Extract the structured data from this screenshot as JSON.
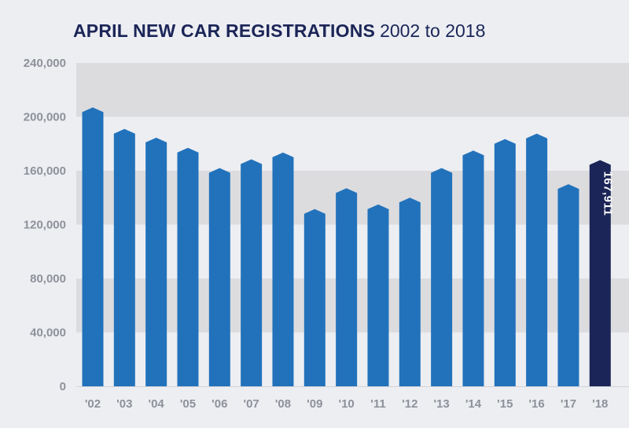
{
  "colors": {
    "bar": "#2272bb",
    "highlight": "#1b2557",
    "band": "#dcdcdf",
    "background": "#eceef2"
  },
  "chart_data": {
    "type": "bar",
    "title": "APRIL NEW CAR REGISTRATIONS",
    "subtitle": "2002 to 2018",
    "xlabel": "",
    "ylabel": "",
    "ylim": [
      0,
      240000
    ],
    "y_ticks": [
      0,
      40000,
      80000,
      120000,
      160000,
      200000,
      240000
    ],
    "y_tick_labels": [
      "0",
      "40,000",
      "80,000",
      "120,000",
      "160,000",
      "200,000",
      "240,000"
    ],
    "categories": [
      "'02",
      "'03",
      "'04",
      "'05",
      "'06",
      "'07",
      "'08",
      "'09",
      "'10",
      "'11",
      "'12",
      "'13",
      "'14",
      "'15",
      "'16",
      "'17",
      "'18"
    ],
    "values": [
      207000,
      191000,
      184500,
      177000,
      162000,
      168500,
      173500,
      131500,
      147000,
      135000,
      140000,
      162000,
      175000,
      183500,
      187500,
      150000,
      167911
    ],
    "highlight_index": 16,
    "data_labels": {
      "16": "167,911"
    },
    "grid": true
  }
}
